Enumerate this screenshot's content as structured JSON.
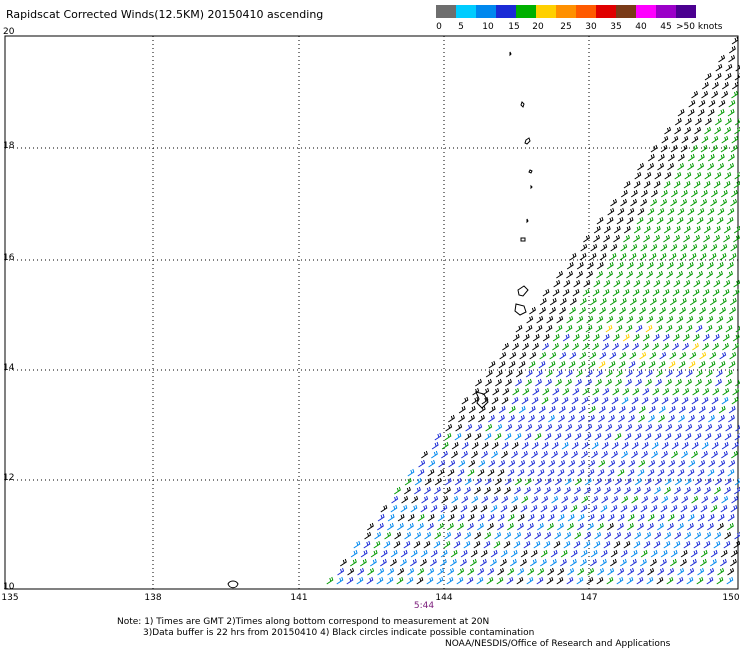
{
  "title": "Rapidscat Corrected Winds(12.5KM) 20150410 ascending",
  "color_scale": {
    "colors": [
      "#6e6e6e",
      "#00ccff",
      "#0088ee",
      "#1b2bd6",
      "#00b000",
      "#ffd000",
      "#ff9000",
      "#ff5a00",
      "#e00000",
      "#7a3b18",
      "#ff00ff",
      "#9b00c8",
      "#4b0090"
    ],
    "labels": [
      "0",
      "5",
      "10",
      "15",
      "20",
      "25",
      "30",
      "35",
      "40",
      "45",
      ">50 knots"
    ]
  },
  "lat_labels": [
    "20",
    "18",
    "16",
    "14",
    "12",
    "10"
  ],
  "lon_labels": [
    "135",
    "138",
    "141",
    "144",
    "147",
    "150"
  ],
  "time_label": "5:44",
  "notes": [
    "Note: 1) Times are GMT 2)Times along bottom correspond to measurement at 20N",
    "3)Data buffer is 22 hrs from 20150410 4) Black circles indicate possible contamination"
  ],
  "credit": "NOAA/NESDIS/Office of Research and Applications"
}
